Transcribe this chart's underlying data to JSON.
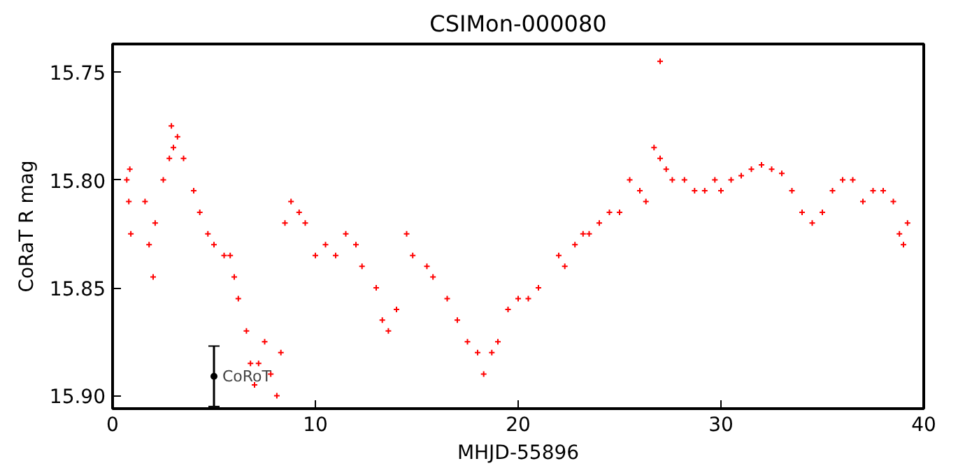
{
  "chart_data": {
    "type": "scatter",
    "title": "CSIMon-000080",
    "xlabel": "MHJD-55896",
    "ylabel": "CoRaT R mag",
    "xlim": [
      0,
      40
    ],
    "xticks": [
      0,
      10,
      20,
      30,
      40
    ],
    "ylim": [
      15.906,
      15.737
    ],
    "yticks": [
      15.75,
      {
        "value": 15.8,
        "label": "15.80"
      },
      15.85,
      {
        "value": 15.9,
        "label": "15.90"
      }
    ],
    "grid": false,
    "annotations": [
      {
        "text": "CoRoT",
        "x": 5,
        "y": 15.891
      }
    ],
    "series": [
      {
        "color": "#ff0000",
        "marker": "cross",
        "x": [
          0.7,
          0.8,
          0.85,
          0.9,
          1.6,
          1.8,
          2.0,
          2.1,
          2.5,
          2.8,
          2.9,
          3.0,
          3.2,
          3.5,
          4.0,
          4.3,
          4.7,
          5.0,
          5.5,
          5.8,
          6.0,
          6.2,
          6.6,
          6.8,
          7.0,
          7.2,
          7.5,
          7.8,
          8.1,
          8.3,
          8.5,
          8.8,
          9.2,
          9.5,
          10.0,
          10.5,
          11.0,
          11.5,
          12.0,
          12.3,
          13.0,
          13.3,
          13.6,
          14.0,
          14.5,
          14.8,
          15.5,
          15.8,
          16.5,
          17.0,
          17.5,
          18.0,
          18.3,
          18.7,
          19.0,
          19.5,
          20.0,
          20.5,
          21.0,
          22.0,
          22.3,
          22.8,
          23.2,
          23.5,
          24.0,
          24.5,
          25.0,
          25.5,
          26.0,
          26.3,
          26.7,
          27.0,
          27.0,
          27.3,
          27.6,
          28.2,
          28.7,
          29.2,
          29.7,
          30.0,
          30.5,
          31.0,
          31.5,
          32.0,
          32.5,
          33.0,
          33.5,
          34.0,
          34.5,
          35.0,
          35.5,
          36.0,
          36.5,
          37.0,
          37.5,
          38.0,
          38.5,
          38.8,
          39.0,
          39.2
        ],
        "values": [
          15.8,
          15.81,
          15.795,
          15.825,
          15.81,
          15.83,
          15.845,
          15.82,
          15.8,
          15.79,
          15.775,
          15.785,
          15.78,
          15.79,
          15.805,
          15.815,
          15.825,
          15.83,
          15.835,
          15.835,
          15.845,
          15.855,
          15.87,
          15.885,
          15.895,
          15.885,
          15.875,
          15.89,
          15.9,
          15.88,
          15.82,
          15.81,
          15.815,
          15.82,
          15.835,
          15.83,
          15.835,
          15.825,
          15.83,
          15.84,
          15.85,
          15.865,
          15.87,
          15.86,
          15.825,
          15.835,
          15.84,
          15.845,
          15.855,
          15.865,
          15.875,
          15.88,
          15.89,
          15.88,
          15.875,
          15.86,
          15.855,
          15.855,
          15.85,
          15.835,
          15.84,
          15.83,
          15.825,
          15.825,
          15.82,
          15.815,
          15.815,
          15.8,
          15.805,
          15.81,
          15.785,
          15.79,
          15.745,
          15.795,
          15.8,
          15.8,
          15.805,
          15.805,
          15.8,
          15.805,
          15.8,
          15.798,
          15.795,
          15.793,
          15.795,
          15.797,
          15.805,
          15.815,
          15.82,
          15.815,
          15.805,
          15.8,
          15.8,
          15.81,
          15.805,
          15.805,
          15.81,
          15.825,
          15.83,
          15.82
        ]
      },
      {
        "color": "#000000",
        "marker": "circle",
        "x": [
          5
        ],
        "values": [
          15.891
        ],
        "errors": [
          0.014
        ]
      }
    ]
  }
}
